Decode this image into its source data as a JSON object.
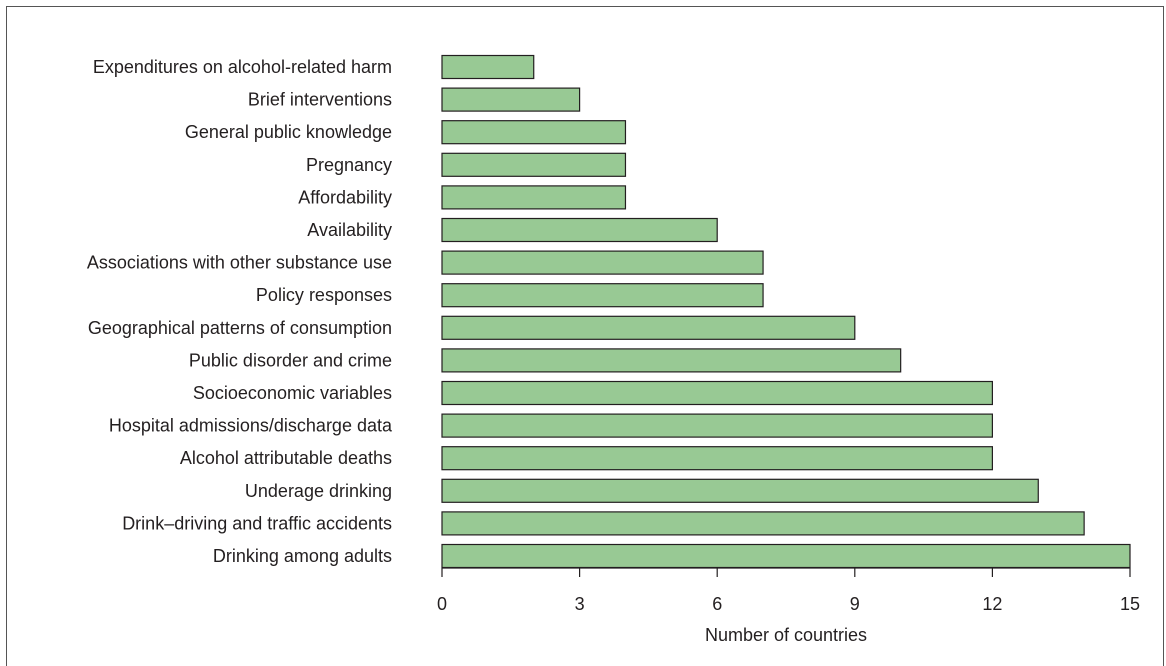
{
  "chart_data": {
    "type": "bar",
    "orientation": "horizontal",
    "categories": [
      "Expenditures on alcohol-related harm",
      "Brief interventions",
      "General public knowledge",
      "Pregnancy",
      "Affordability",
      "Availability",
      "Associations with other substance use",
      "Policy responses",
      "Geographical patterns of consumption",
      "Public disorder and crime",
      "Socioeconomic variables",
      "Hospital admissions/discharge data",
      "Alcohol attributable deaths",
      "Underage drinking",
      "Drink–driving and traffic accidents",
      "Drinking among adults"
    ],
    "values": [
      2,
      3,
      4,
      4,
      4,
      6,
      7,
      7,
      9,
      10,
      12,
      12,
      12,
      13,
      14,
      15
    ],
    "xlabel": "Number of countries",
    "ylabel": "",
    "xlim": [
      0,
      15
    ],
    "xticks": [
      "0",
      "3",
      "6",
      "9",
      "12",
      "15"
    ],
    "grid": false,
    "bar_color": "#98c994"
  }
}
